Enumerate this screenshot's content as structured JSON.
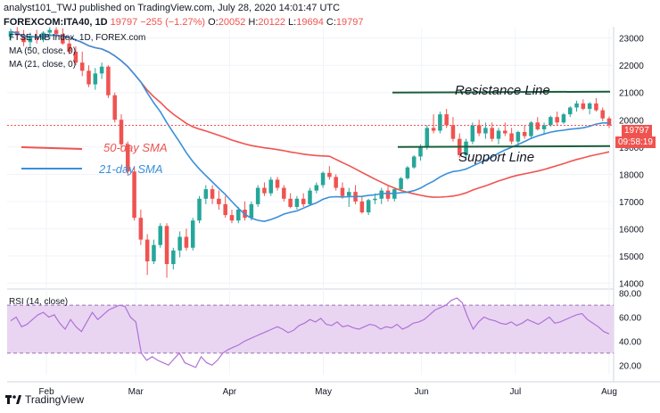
{
  "header": {
    "publisher": "analyst101_TWJ published on TradingView.com, July 28, 2020 14:01:47 UTC",
    "symbol": "FOREXCOM:ITA40, 1D",
    "close_val": "19797",
    "change": "−255 (−1.27%)",
    "o_label": "O:",
    "o_val": "20052",
    "h_label": "H:",
    "h_val": "20122",
    "l_label": "L:",
    "l_val": "19694",
    "c_label": "C:",
    "c_val": "19797"
  },
  "legend": {
    "title": "FTSE MIB Index, 1D, FOREX.com",
    "ma50": "MA (50, close, 0)",
    "ma21": "MA (21, close, 0)"
  },
  "annotations": {
    "resistance": "Resistance Line",
    "support": "Support Line",
    "sma50": "50-day SMA",
    "sma21": "21-day SMA"
  },
  "price_tags": {
    "last": "19797",
    "countdown": "09:58:19"
  },
  "rsi": {
    "label": "RSI (14, close)"
  },
  "footer": {
    "brand": "TradingView"
  },
  "colors": {
    "up": "#26a69a",
    "down": "#ef5350",
    "ma50": "#f05350",
    "ma21": "#3a8fd9",
    "rsi_line": "#b071d6",
    "rsi_band": "#e9d5f2",
    "level_line": "#1b5e3a"
  },
  "chart_data": [
    {
      "type": "candlestick",
      "title": "FTSE MIB Index, 1D, FOREX.com",
      "x_ticks": [
        "Feb",
        "Mar",
        "Apr",
        "May",
        "Jun",
        "Jul",
        "Aug"
      ],
      "y_ticks": [
        14000,
        15000,
        16000,
        17000,
        18000,
        19000,
        20000,
        21000,
        22000,
        23000
      ],
      "ylim": [
        13850,
        23350
      ],
      "last_price": 19797,
      "resistance_level": 21000,
      "support_level": 19000,
      "ohlc": [
        [
          23050,
          23350,
          22900,
          23250
        ],
        [
          23250,
          23400,
          22950,
          23100
        ],
        [
          23100,
          23300,
          22700,
          22850
        ],
        [
          22850,
          23200,
          22600,
          23050
        ],
        [
          23050,
          23300,
          22800,
          22950
        ],
        [
          22950,
          23250,
          22850,
          23200
        ],
        [
          23200,
          23400,
          22950,
          23300
        ],
        [
          23300,
          23400,
          23000,
          23150
        ],
        [
          23150,
          23350,
          22750,
          22800
        ],
        [
          22800,
          23000,
          22400,
          22500
        ],
        [
          22500,
          22700,
          22000,
          22100
        ],
        [
          22100,
          22500,
          21600,
          21800
        ],
        [
          21800,
          22000,
          21200,
          21300
        ],
        [
          21300,
          21900,
          21100,
          21700
        ],
        [
          21700,
          22100,
          21500,
          21950
        ],
        [
          21950,
          22000,
          20800,
          20900
        ],
        [
          20900,
          21000,
          19900,
          20000
        ],
        [
          20000,
          20200,
          19000,
          19100
        ],
        [
          19100,
          19200,
          17950,
          18100
        ],
        [
          18100,
          18300,
          16300,
          16400
        ],
        [
          16400,
          16700,
          15400,
          15600
        ],
        [
          15600,
          15800,
          14300,
          14800
        ],
        [
          14800,
          15600,
          14700,
          15400
        ],
        [
          15400,
          16200,
          15300,
          16100
        ],
        [
          16100,
          16200,
          14200,
          14700
        ],
        [
          14700,
          15300,
          14500,
          15200
        ],
        [
          15200,
          15900,
          14950,
          15700
        ],
        [
          15700,
          16000,
          15200,
          15300
        ],
        [
          15300,
          16400,
          15200,
          16300
        ],
        [
          16300,
          17200,
          16200,
          17100
        ],
        [
          17100,
          17600,
          16900,
          17450
        ],
        [
          17450,
          17600,
          16900,
          17100
        ],
        [
          17100,
          17400,
          16700,
          16900
        ],
        [
          16900,
          17200,
          16400,
          16500
        ],
        [
          16500,
          16700,
          16200,
          16300
        ],
        [
          16300,
          16800,
          16200,
          16700
        ],
        [
          16700,
          17000,
          16300,
          16400
        ],
        [
          16400,
          17000,
          16300,
          16900
        ],
        [
          16900,
          17600,
          16800,
          17500
        ],
        [
          17500,
          17700,
          17200,
          17300
        ],
        [
          17300,
          17900,
          17200,
          17800
        ],
        [
          17800,
          17900,
          17400,
          17500
        ],
        [
          17500,
          17600,
          17000,
          17100
        ],
        [
          17100,
          17300,
          16750,
          16800
        ],
        [
          16800,
          17200,
          16700,
          17100
        ],
        [
          17100,
          17300,
          16800,
          16900
        ],
        [
          16900,
          17500,
          16850,
          17400
        ],
        [
          17400,
          17700,
          17300,
          17600
        ],
        [
          17600,
          18100,
          17500,
          18050
        ],
        [
          18050,
          18300,
          17800,
          17900
        ],
        [
          17900,
          18000,
          17400,
          17500
        ],
        [
          17500,
          17700,
          17100,
          17200
        ],
        [
          17200,
          17500,
          16800,
          17350
        ],
        [
          17350,
          17600,
          16900,
          17000
        ],
        [
          17000,
          17200,
          16550,
          16600
        ],
        [
          16600,
          17100,
          16500,
          17050
        ],
        [
          17050,
          17300,
          16900,
          17100
        ],
        [
          17100,
          17500,
          16900,
          17400
        ],
        [
          17400,
          17600,
          17000,
          17100
        ],
        [
          17100,
          17500,
          17000,
          17450
        ],
        [
          17450,
          17900,
          17400,
          17850
        ],
        [
          17850,
          18300,
          17800,
          18250
        ],
        [
          18250,
          18700,
          18200,
          18650
        ],
        [
          18650,
          19100,
          18500,
          19000
        ],
        [
          19000,
          19800,
          18900,
          19700
        ],
        [
          19700,
          20200,
          19500,
          19600
        ],
        [
          19600,
          20300,
          19500,
          20200
        ],
        [
          20200,
          20400,
          19700,
          19800
        ],
        [
          19800,
          20100,
          19200,
          19300
        ],
        [
          19300,
          19500,
          18600,
          18700
        ],
        [
          18700,
          19300,
          18600,
          19200
        ],
        [
          19200,
          19900,
          19100,
          19800
        ],
        [
          19800,
          20000,
          19400,
          19500
        ],
        [
          19500,
          19900,
          19300,
          19700
        ],
        [
          19700,
          19900,
          19200,
          19300
        ],
        [
          19300,
          19700,
          19100,
          19600
        ],
        [
          19600,
          19900,
          19400,
          19500
        ],
        [
          19500,
          19700,
          19100,
          19200
        ],
        [
          19200,
          19600,
          19000,
          19550
        ],
        [
          19550,
          19800,
          19300,
          19400
        ],
        [
          19400,
          19950,
          19300,
          19900
        ],
        [
          19900,
          20100,
          19600,
          19650
        ],
        [
          19650,
          19900,
          19500,
          19800
        ],
        [
          19800,
          20150,
          19750,
          20100
        ],
        [
          20100,
          20300,
          19800,
          19900
        ],
        [
          19900,
          20250,
          19850,
          20200
        ],
        [
          20200,
          20500,
          20100,
          20450
        ],
        [
          20450,
          20700,
          20300,
          20600
        ],
        [
          20600,
          20750,
          20350,
          20400
        ],
        [
          20400,
          20650,
          20200,
          20600
        ],
        [
          20600,
          20800,
          20300,
          20350
        ],
        [
          20350,
          20450,
          19950,
          20050
        ],
        [
          20050,
          20120,
          19694,
          19797
        ]
      ]
    },
    {
      "type": "line",
      "title": "RSI (14, close)",
      "y_ticks": [
        20,
        40,
        60,
        80
      ],
      "ylim": [
        12,
        82
      ],
      "band": [
        30,
        70
      ],
      "values": [
        57,
        60,
        52,
        54,
        58,
        62,
        64,
        60,
        62,
        55,
        50,
        58,
        52,
        48,
        56,
        64,
        58,
        62,
        66,
        68,
        70,
        69,
        60,
        56,
        30,
        24,
        27,
        24,
        22,
        20,
        25,
        30,
        22,
        20,
        18,
        27,
        22,
        20,
        24,
        30,
        33,
        35,
        37,
        40,
        42,
        44,
        46,
        48,
        50,
        52,
        50,
        47,
        49,
        53,
        55,
        58,
        56,
        59,
        54,
        53,
        56,
        52,
        53,
        51,
        50,
        52,
        54,
        53,
        50,
        52,
        51,
        54,
        50,
        52,
        55,
        56,
        58,
        62,
        66,
        68,
        70,
        74,
        76,
        72,
        60,
        50,
        56,
        60,
        58,
        57,
        55,
        54,
        56,
        53,
        55,
        58,
        56,
        54,
        57,
        60,
        55,
        56,
        58,
        60,
        62,
        63,
        58,
        55,
        52,
        48,
        46
      ]
    }
  ]
}
